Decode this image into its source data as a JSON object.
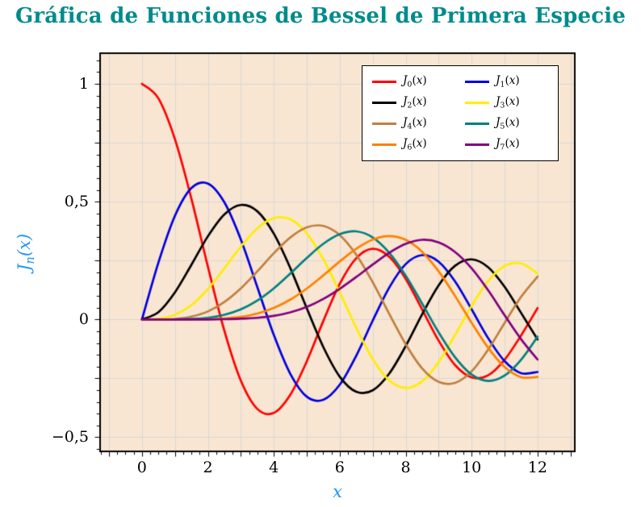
{
  "title": "Gráfica de Funciones de Bessel de Primera Especie",
  "styles": {
    "title_color": "#008b8b",
    "axis_label_color": "#2196f3",
    "plot_border_color": "#000000"
  },
  "chart_data": {
    "type": "line",
    "title": "Gráfica de Funciones de Bessel de Primera Especie",
    "xlabel": "x",
    "ylabel": "J_n(x)",
    "xlim": [
      -1.27,
      13.13
    ],
    "ylim": [
      -0.56,
      1.13
    ],
    "grid": true,
    "grid_x_step": 1,
    "grid_y_step": 0.25,
    "grid_color": "#d8d8d8",
    "plot_background": "#f9e6d2",
    "legend_position": "top-right",
    "x_ticks": {
      "values": [
        0,
        2,
        4,
        6,
        8,
        10,
        12
      ],
      "labels": [
        "0",
        "2",
        "4",
        "6",
        "8",
        "10",
        "12"
      ]
    },
    "y_ticks": {
      "values": [
        1,
        0.5,
        0,
        -0.5
      ],
      "labels": [
        "1",
        "0,5",
        "0",
        "−0,5"
      ]
    },
    "x": [
      0,
      0.5,
      1,
      1.5,
      2,
      2.5,
      3,
      3.5,
      4,
      4.5,
      5,
      5.5,
      6,
      6.5,
      7,
      7.5,
      8,
      8.5,
      9,
      9.5,
      10,
      10.5,
      11,
      11.5,
      12
    ],
    "series": [
      {
        "name": "J_0(x)",
        "color": "#ff0000",
        "values": [
          1,
          0.938,
          0.765,
          0.512,
          0.224,
          -0.048,
          -0.26,
          -0.38,
          -0.397,
          -0.32,
          -0.178,
          -0.007,
          0.151,
          0.26,
          0.3,
          0.266,
          0.172,
          0.042,
          -0.09,
          -0.194,
          -0.246,
          -0.237,
          -0.171,
          -0.068,
          0.048
        ]
      },
      {
        "name": "J_1(x)",
        "color": "#0000e0",
        "values": [
          0,
          0.242,
          0.44,
          0.558,
          0.577,
          0.497,
          0.339,
          0.137,
          -0.066,
          -0.231,
          -0.328,
          -0.341,
          -0.277,
          -0.154,
          -0.005,
          0.135,
          0.235,
          0.273,
          0.245,
          0.161,
          0.043,
          -0.079,
          -0.177,
          -0.228,
          -0.223
        ]
      },
      {
        "name": "J_2(x)",
        "color": "#000000",
        "values": [
          0,
          0.031,
          0.115,
          0.232,
          0.353,
          0.446,
          0.486,
          0.459,
          0.364,
          0.218,
          0.047,
          -0.117,
          -0.243,
          -0.307,
          -0.301,
          -0.23,
          -0.113,
          0.022,
          0.145,
          0.228,
          0.255,
          0.222,
          0.139,
          0.028,
          -0.085
        ]
      },
      {
        "name": "J_3(x)",
        "color": "#ffee00",
        "values": [
          0,
          0.003,
          0.02,
          0.061,
          0.129,
          0.217,
          0.309,
          0.387,
          0.43,
          0.425,
          0.365,
          0.256,
          0.115,
          -0.035,
          -0.168,
          -0.258,
          -0.291,
          -0.263,
          -0.181,
          -0.065,
          0.058,
          0.163,
          0.227,
          0.238,
          0.195
        ]
      },
      {
        "name": "J_4(x)",
        "color": "#bf8040",
        "values": [
          0,
          0,
          0.002,
          0.012,
          0.034,
          0.074,
          0.132,
          0.204,
          0.281,
          0.348,
          0.391,
          0.397,
          0.358,
          0.275,
          0.158,
          0.024,
          -0.105,
          -0.208,
          -0.265,
          -0.269,
          -0.22,
          -0.128,
          -0.015,
          0.096,
          0.182
        ]
      },
      {
        "name": "J_5(x)",
        "color": "#008080",
        "values": [
          0,
          0,
          0,
          0.002,
          0.007,
          0.02,
          0.043,
          0.08,
          0.132,
          0.195,
          0.261,
          0.321,
          0.362,
          0.374,
          0.348,
          0.283,
          0.186,
          0.067,
          -0.055,
          -0.161,
          -0.234,
          -0.261,
          -0.238,
          -0.171,
          -0.073
        ]
      },
      {
        "name": "J_6(x)",
        "color": "#ff8000",
        "values": [
          0,
          0,
          0,
          0,
          0.001,
          0.004,
          0.011,
          0.025,
          0.049,
          0.084,
          0.131,
          0.187,
          0.246,
          0.3,
          0.339,
          0.354,
          0.338,
          0.287,
          0.204,
          0.099,
          -0.014,
          -0.12,
          -0.202,
          -0.245,
          -0.244
        ]
      },
      {
        "name": "J_7(x)",
        "color": "#800080",
        "values": [
          0,
          0,
          0,
          0,
          0,
          0.001,
          0.003,
          0.007,
          0.015,
          0.03,
          0.053,
          0.087,
          0.13,
          0.18,
          0.233,
          0.283,
          0.321,
          0.338,
          0.327,
          0.286,
          0.217,
          0.124,
          0.018,
          -0.084,
          -0.17
        ]
      }
    ]
  }
}
